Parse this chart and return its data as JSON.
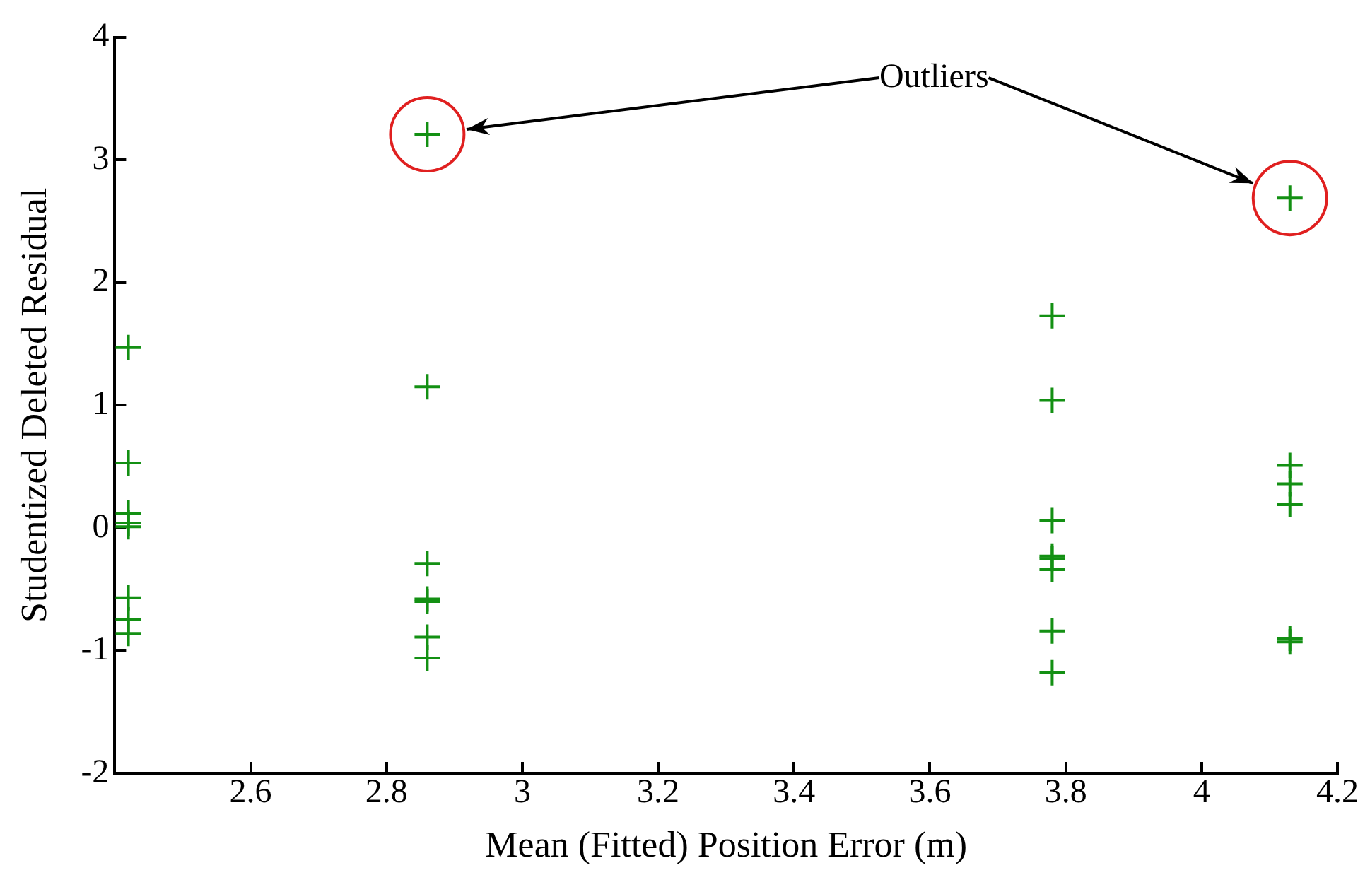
{
  "chart_data": {
    "type": "scatter",
    "xlabel": "Mean (Fitted) Position Error (m)",
    "ylabel": "Studentized Deleted Residual",
    "xlim": [
      2.4,
      4.2
    ],
    "xticks": [
      2.6,
      2.8,
      3,
      3.2,
      3.4,
      3.6,
      3.8,
      4,
      4.2
    ],
    "ylim": [
      -2,
      4
    ],
    "yticks": [
      -2,
      -1,
      0,
      1,
      2,
      3,
      4
    ],
    "grid": false,
    "legend": false,
    "marker": "cross",
    "series": [
      {
        "color": "#139013",
        "x": [
          2.42,
          2.42,
          2.42,
          2.42,
          2.42,
          2.42,
          2.42,
          2.42,
          2.86,
          2.86,
          2.86,
          2.86,
          2.86,
          2.86,
          2.86,
          3.78,
          3.78,
          3.78,
          3.78,
          3.78,
          3.78,
          3.78,
          3.78,
          4.13,
          4.13,
          4.13,
          4.13,
          4.13,
          4.13
        ],
        "values": [
          1.47,
          0.53,
          0.12,
          0.04,
          -0.57,
          -0.75,
          -0.86,
          0.01,
          3.21,
          1.15,
          -0.29,
          -0.58,
          -0.6,
          -0.89,
          -1.06,
          1.73,
          1.04,
          0.06,
          -0.23,
          -0.34,
          -0.84,
          -1.18,
          -0.25,
          2.69,
          0.51,
          0.36,
          0.19,
          -0.9,
          -0.93
        ]
      }
    ],
    "annotations": [
      "Outliers"
    ]
  }
}
